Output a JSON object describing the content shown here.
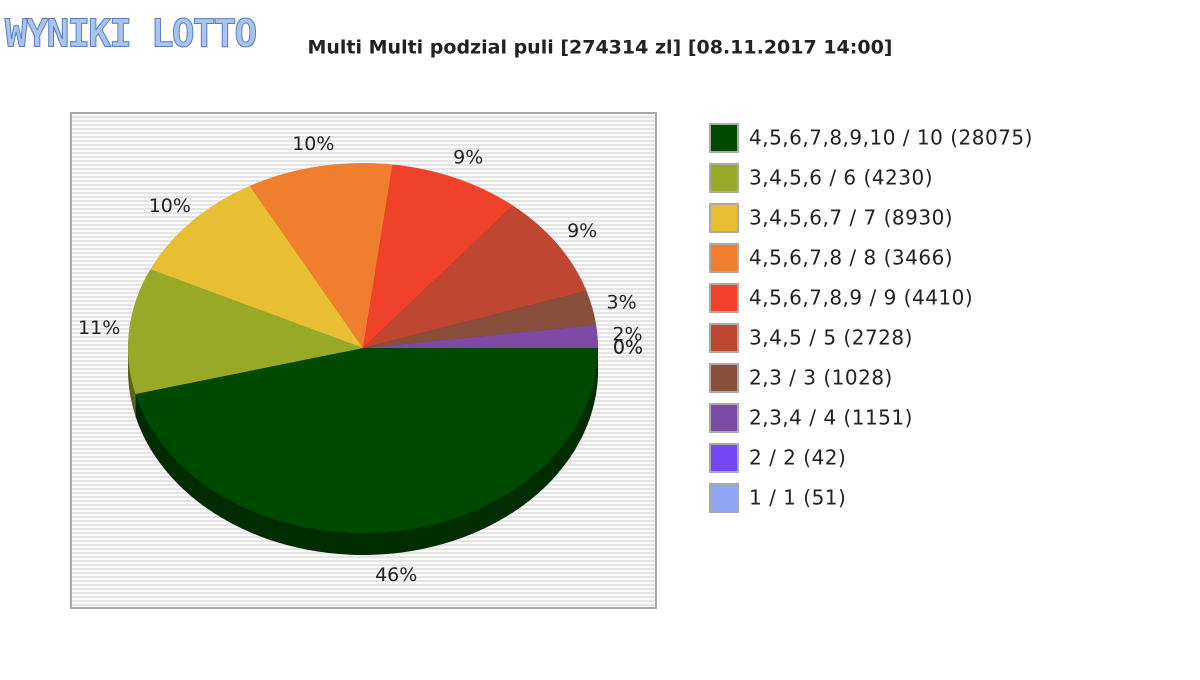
{
  "logo": "WYNIKI LOTTO",
  "chart_data": {
    "type": "pie",
    "title": "Multi Multi podzial puli [274314 zl] [08.11.2017 14:00]",
    "categories": [
      "4,5,6,7,8,9,10 / 10 (28075)",
      "3,4,5,6 / 6 (4230)",
      "3,4,5,6,7 / 7 (8930)",
      "4,5,6,7,8 / 8 (3466)",
      "4,5,6,7,8,9 / 9 (4410)",
      "3,4,5 / 5 (2728)",
      "2,3 / 3 (1028)",
      "2,3,4 / 4 (1151)",
      "2 / 2 (42)",
      "1 / 1 (51)"
    ],
    "values": [
      46,
      11,
      10,
      10,
      9,
      9,
      3,
      2,
      0,
      0
    ],
    "value_labels": [
      "46%",
      "11%",
      "10%",
      "10%",
      "9%",
      "9%",
      "3%",
      "2%",
      "0%",
      "0%"
    ],
    "colors": [
      "#004a00",
      "#98a827",
      "#e8be33",
      "#ef7f2d",
      "#f0412a",
      "#bf4631",
      "#874f3c",
      "#7d4aa5",
      "#7447f5",
      "#90a6f5"
    ],
    "legend": "right"
  }
}
